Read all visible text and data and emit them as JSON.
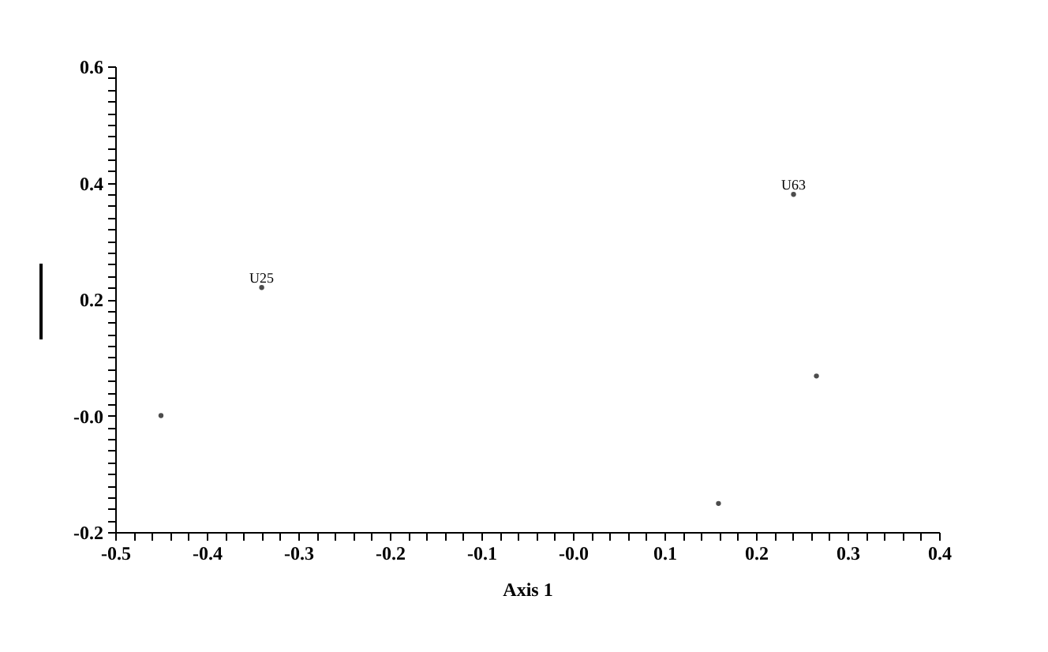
{
  "chart_data": {
    "type": "scatter",
    "xlabel": "Axis 1",
    "marker": "circle",
    "grid": false,
    "series": [
      {
        "color": "#000000",
        "x": [
          -0.45,
          -0.34,
          0.159,
          0.241,
          0.266
        ],
        "values": [
          0.0,
          0.22,
          -0.151,
          0.38,
          0.068
        ]
      }
    ],
    "annotations": [
      {
        "text": "U25",
        "x": -0.34,
        "y": 0.22
      },
      {
        "text": "U63",
        "x": 0.241,
        "y": 0.38
      }
    ],
    "xlim": [
      -0.5,
      0.4
    ],
    "ylim": [
      -0.2,
      0.6
    ],
    "xticks": [
      -0.5,
      {
        "value": -0.48,
        "label": null
      },
      {
        "value": -0.46,
        "label": null
      },
      {
        "value": -0.44,
        "label": null
      },
      {
        "value": -0.42,
        "label": null
      },
      -0.4,
      {
        "value": -0.38,
        "label": null
      },
      {
        "value": -0.36,
        "label": null
      },
      {
        "value": -0.34,
        "label": null
      },
      {
        "value": -0.32,
        "label": null
      },
      -0.3,
      {
        "value": -0.28,
        "label": null
      },
      {
        "value": -0.26,
        "label": null
      },
      {
        "value": -0.24,
        "label": null
      },
      {
        "value": -0.22,
        "label": null
      },
      -0.2,
      {
        "value": -0.18,
        "label": null
      },
      {
        "value": -0.16,
        "label": null
      },
      {
        "value": -0.14,
        "label": null
      },
      {
        "value": -0.12,
        "label": null
      },
      -0.1,
      {
        "value": -0.08,
        "label": null
      },
      {
        "value": -0.06,
        "label": null
      },
      {
        "value": -0.04,
        "label": null
      },
      {
        "value": -0.02,
        "label": null
      },
      {
        "value": 0,
        "label": "-0.0"
      },
      {
        "value": 0.02,
        "label": null
      },
      {
        "value": 0.04,
        "label": null
      },
      {
        "value": 0.06,
        "label": null
      },
      {
        "value": 0.08,
        "label": null
      },
      0.1,
      {
        "value": 0.12,
        "label": null
      },
      {
        "value": 0.14,
        "label": null
      },
      {
        "value": 0.16,
        "label": null
      },
      {
        "value": 0.18,
        "label": null
      },
      0.2,
      {
        "value": 0.22,
        "label": null
      },
      {
        "value": 0.24,
        "label": null
      },
      {
        "value": 0.26,
        "label": null
      },
      {
        "value": 0.28,
        "label": null
      },
      0.3,
      {
        "value": 0.32,
        "label": null
      },
      {
        "value": 0.34,
        "label": null
      },
      {
        "value": 0.36,
        "label": null
      },
      {
        "value": 0.38,
        "label": null
      },
      0.4
    ],
    "yticks": [
      -0.2,
      {
        "value": -0.18,
        "label": null
      },
      {
        "value": -0.16,
        "label": null
      },
      {
        "value": -0.14,
        "label": null
      },
      {
        "value": -0.12,
        "label": null
      },
      {
        "value": -0.1,
        "label": null
      },
      {
        "value": -0.08,
        "label": null
      },
      {
        "value": -0.06,
        "label": null
      },
      {
        "value": -0.04,
        "label": null
      },
      {
        "value": -0.02,
        "label": null
      },
      {
        "value": 0,
        "label": "-0.0"
      },
      {
        "value": 0.02,
        "label": null
      },
      {
        "value": 0.04,
        "label": null
      },
      {
        "value": 0.06,
        "label": null
      },
      {
        "value": 0.08,
        "label": null
      },
      {
        "value": 0.1,
        "label": null
      },
      {
        "value": 0.12,
        "label": null
      },
      {
        "value": 0.14,
        "label": null
      },
      {
        "value": 0.16,
        "label": null
      },
      {
        "value": 0.18,
        "label": null
      },
      0.2,
      {
        "value": 0.22,
        "label": null
      },
      {
        "value": 0.24,
        "label": null
      },
      {
        "value": 0.26,
        "label": null
      },
      {
        "value": 0.28,
        "label": null
      },
      {
        "value": 0.3,
        "label": null
      },
      {
        "value": 0.32,
        "label": null
      },
      {
        "value": 0.34,
        "label": null
      },
      {
        "value": 0.36,
        "label": null
      },
      {
        "value": 0.38,
        "label": null
      },
      0.4,
      {
        "value": 0.42,
        "label": null
      },
      {
        "value": 0.44,
        "label": null
      },
      {
        "value": 0.46,
        "label": null
      },
      {
        "value": 0.48,
        "label": null
      },
      {
        "value": 0.5,
        "label": null
      },
      {
        "value": 0.52,
        "label": null
      },
      {
        "value": 0.54,
        "label": null
      },
      {
        "value": 0.56,
        "label": null
      },
      {
        "value": 0.58,
        "label": null
      },
      0.6
    ]
  }
}
